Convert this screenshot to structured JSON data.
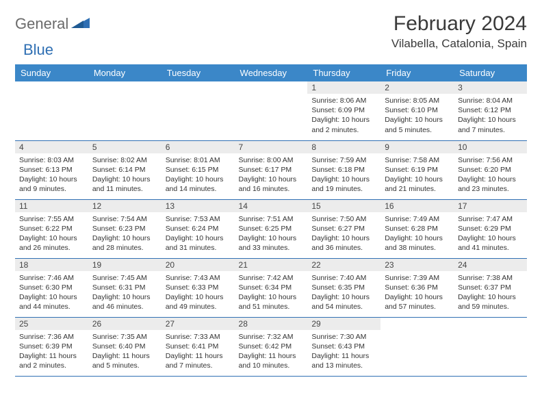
{
  "brand": {
    "part1": "General",
    "part2": "Blue",
    "accent_color": "#2f6fb3",
    "gray_color": "#6a6a6a"
  },
  "header": {
    "month_title": "February 2024",
    "location": "Vilabella, Catalonia, Spain"
  },
  "colors": {
    "header_bg": "#3b87c8",
    "header_fg": "#ffffff",
    "day_bar_bg": "#ececec",
    "rule": "#2f6fb3",
    "text": "#333333",
    "page_bg": "#ffffff"
  },
  "typography": {
    "month_title_size_pt": 22,
    "location_size_pt": 13,
    "weekday_header_size_pt": 10,
    "daynum_size_pt": 9,
    "body_size_pt": 8
  },
  "weekdays": [
    "Sunday",
    "Monday",
    "Tuesday",
    "Wednesday",
    "Thursday",
    "Friday",
    "Saturday"
  ],
  "weeks": [
    [
      null,
      null,
      null,
      null,
      {
        "n": "1",
        "sr": "8:06 AM",
        "ss": "6:09 PM",
        "dl": "10 hours and 2 minutes."
      },
      {
        "n": "2",
        "sr": "8:05 AM",
        "ss": "6:10 PM",
        "dl": "10 hours and 5 minutes."
      },
      {
        "n": "3",
        "sr": "8:04 AM",
        "ss": "6:12 PM",
        "dl": "10 hours and 7 minutes."
      }
    ],
    [
      {
        "n": "4",
        "sr": "8:03 AM",
        "ss": "6:13 PM",
        "dl": "10 hours and 9 minutes."
      },
      {
        "n": "5",
        "sr": "8:02 AM",
        "ss": "6:14 PM",
        "dl": "10 hours and 11 minutes."
      },
      {
        "n": "6",
        "sr": "8:01 AM",
        "ss": "6:15 PM",
        "dl": "10 hours and 14 minutes."
      },
      {
        "n": "7",
        "sr": "8:00 AM",
        "ss": "6:17 PM",
        "dl": "10 hours and 16 minutes."
      },
      {
        "n": "8",
        "sr": "7:59 AM",
        "ss": "6:18 PM",
        "dl": "10 hours and 19 minutes."
      },
      {
        "n": "9",
        "sr": "7:58 AM",
        "ss": "6:19 PM",
        "dl": "10 hours and 21 minutes."
      },
      {
        "n": "10",
        "sr": "7:56 AM",
        "ss": "6:20 PM",
        "dl": "10 hours and 23 minutes."
      }
    ],
    [
      {
        "n": "11",
        "sr": "7:55 AM",
        "ss": "6:22 PM",
        "dl": "10 hours and 26 minutes."
      },
      {
        "n": "12",
        "sr": "7:54 AM",
        "ss": "6:23 PM",
        "dl": "10 hours and 28 minutes."
      },
      {
        "n": "13",
        "sr": "7:53 AM",
        "ss": "6:24 PM",
        "dl": "10 hours and 31 minutes."
      },
      {
        "n": "14",
        "sr": "7:51 AM",
        "ss": "6:25 PM",
        "dl": "10 hours and 33 minutes."
      },
      {
        "n": "15",
        "sr": "7:50 AM",
        "ss": "6:27 PM",
        "dl": "10 hours and 36 minutes."
      },
      {
        "n": "16",
        "sr": "7:49 AM",
        "ss": "6:28 PM",
        "dl": "10 hours and 38 minutes."
      },
      {
        "n": "17",
        "sr": "7:47 AM",
        "ss": "6:29 PM",
        "dl": "10 hours and 41 minutes."
      }
    ],
    [
      {
        "n": "18",
        "sr": "7:46 AM",
        "ss": "6:30 PM",
        "dl": "10 hours and 44 minutes."
      },
      {
        "n": "19",
        "sr": "7:45 AM",
        "ss": "6:31 PM",
        "dl": "10 hours and 46 minutes."
      },
      {
        "n": "20",
        "sr": "7:43 AM",
        "ss": "6:33 PM",
        "dl": "10 hours and 49 minutes."
      },
      {
        "n": "21",
        "sr": "7:42 AM",
        "ss": "6:34 PM",
        "dl": "10 hours and 51 minutes."
      },
      {
        "n": "22",
        "sr": "7:40 AM",
        "ss": "6:35 PM",
        "dl": "10 hours and 54 minutes."
      },
      {
        "n": "23",
        "sr": "7:39 AM",
        "ss": "6:36 PM",
        "dl": "10 hours and 57 minutes."
      },
      {
        "n": "24",
        "sr": "7:38 AM",
        "ss": "6:37 PM",
        "dl": "10 hours and 59 minutes."
      }
    ],
    [
      {
        "n": "25",
        "sr": "7:36 AM",
        "ss": "6:39 PM",
        "dl": "11 hours and 2 minutes."
      },
      {
        "n": "26",
        "sr": "7:35 AM",
        "ss": "6:40 PM",
        "dl": "11 hours and 5 minutes."
      },
      {
        "n": "27",
        "sr": "7:33 AM",
        "ss": "6:41 PM",
        "dl": "11 hours and 7 minutes."
      },
      {
        "n": "28",
        "sr": "7:32 AM",
        "ss": "6:42 PM",
        "dl": "11 hours and 10 minutes."
      },
      {
        "n": "29",
        "sr": "7:30 AM",
        "ss": "6:43 PM",
        "dl": "11 hours and 13 minutes."
      },
      null,
      null
    ]
  ],
  "labels": {
    "sunrise": "Sunrise:",
    "sunset": "Sunset:",
    "daylight": "Daylight:"
  }
}
